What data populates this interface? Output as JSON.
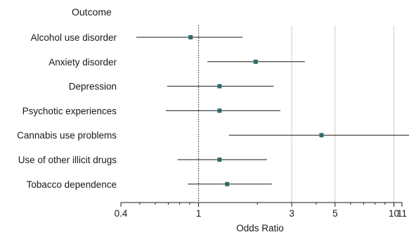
{
  "chart_data": {
    "type": "forest",
    "column_header": "Outcome",
    "xlabel": "Odds Ratio",
    "x_scale": "log",
    "xlim": [
      0.4,
      11
    ],
    "ticks": [
      {
        "value": 0.4,
        "label": "0.4"
      },
      {
        "value": 1,
        "label": "1"
      },
      {
        "value": 3,
        "label": "3"
      },
      {
        "value": 5,
        "label": "5"
      },
      {
        "value": 10,
        "label": "10"
      },
      {
        "value": 11,
        "label": "11"
      }
    ],
    "minor_ticks": [
      0.5,
      0.6,
      0.7,
      0.8,
      0.9,
      2,
      4,
      6,
      7,
      8,
      9
    ],
    "vertical_gridlines": [
      3,
      5,
      10
    ],
    "reference_line": 1,
    "rows": [
      {
        "outcome": "Alcohol use disorder",
        "or": 0.91,
        "lower": 0.48,
        "upper": 1.68
      },
      {
        "outcome": "Anxiety disorder",
        "or": 1.96,
        "lower": 1.11,
        "upper": 3.5
      },
      {
        "outcome": "Depression",
        "or": 1.28,
        "lower": 0.69,
        "upper": 2.42
      },
      {
        "outcome": "Psychotic experiences",
        "or": 1.28,
        "lower": 0.68,
        "upper": 2.62
      },
      {
        "outcome": "Cannabis use problems",
        "or": 4.26,
        "lower": 1.43,
        "upper": 12.16
      },
      {
        "outcome": "Use of other illicit drugs",
        "or": 1.28,
        "lower": 0.78,
        "upper": 2.24
      },
      {
        "outcome": "Tobacco dependence",
        "or": 1.4,
        "lower": 0.88,
        "upper": 2.38
      }
    ],
    "colors": {
      "marker": "#2d6b6b",
      "line": "#1a1a1a",
      "grid": "#cfcfcf",
      "axis": "#1a1a1a"
    }
  }
}
